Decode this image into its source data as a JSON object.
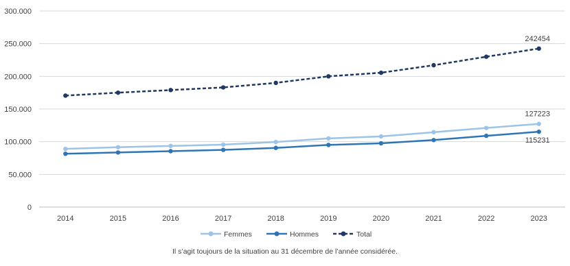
{
  "chart_data": {
    "type": "line",
    "x": [
      "2014",
      "2015",
      "2016",
      "2017",
      "2018",
      "2019",
      "2020",
      "2021",
      "2022",
      "2023"
    ],
    "ylim": [
      0,
      300000
    ],
    "y_ticks": [
      "0",
      "50.000",
      "100.000",
      "150.000",
      "200.000",
      "250.000",
      "300.000"
    ],
    "grid": true,
    "legend_position": "bottom",
    "series": [
      {
        "name": "Femmes",
        "color": "#9dc3e6",
        "dash": false,
        "values": [
          89000,
          91500,
          93500,
          95500,
          99500,
          105000,
          108000,
          114500,
          121000,
          127223
        ]
      },
      {
        "name": "Hommes",
        "color": "#2e75b6",
        "dash": false,
        "values": [
          81500,
          83500,
          85500,
          87500,
          90500,
          95000,
          97500,
          102500,
          109000,
          115231
        ]
      },
      {
        "name": "Total",
        "color": "#1f3864",
        "dash": true,
        "values": [
          170500,
          175000,
          179000,
          183000,
          190000,
          200000,
          205500,
          217000,
          230000,
          242454
        ]
      }
    ],
    "data_labels": [
      "242454",
      "127223",
      "115231"
    ]
  },
  "caption": "Il s’agit toujours de la situation au 31 décembre de l’année considérée."
}
